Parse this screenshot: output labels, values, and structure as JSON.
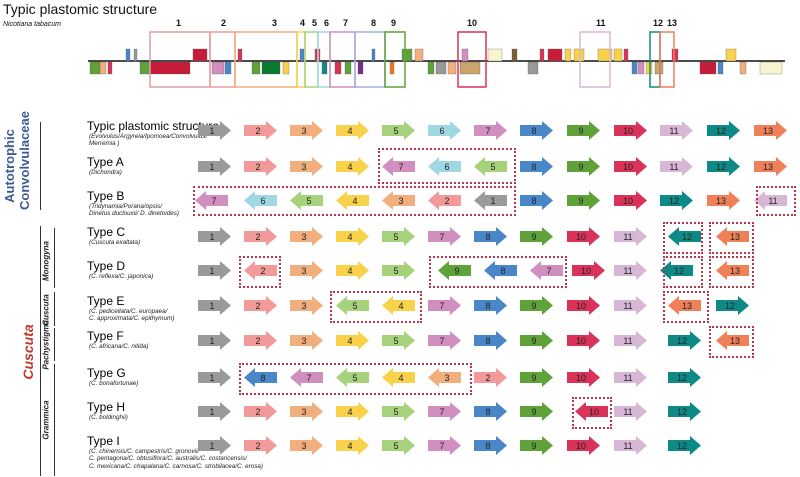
{
  "header": {
    "title": "Typic plastomic structure",
    "species": "Nicotiana tabacum"
  },
  "genome_numbers": [
    "1",
    "2",
    "3",
    "4",
    "5",
    "6",
    "7",
    "8",
    "9",
    "10",
    "11",
    "12",
    "13"
  ],
  "groups": {
    "autotrophic": [
      "Autotrophic",
      "Convolvulaceae"
    ],
    "cuscuta": "Cuscuta",
    "subgenera": [
      "Monogyna",
      "Cuscuta",
      "Pachystigma",
      "Grammica"
    ]
  },
  "colors": {
    "1": "#9a9a9a",
    "2": "#f29a9a",
    "3": "#f2ae7c",
    "4": "#f8d24a",
    "5": "#a6d27c",
    "6": "#9fd8e2",
    "7": "#d18fbf",
    "8": "#4a87c9",
    "9": "#5fa23a",
    "10": "#d9335a",
    "11": "#d7b7d5",
    "12": "#0d8a86",
    "13": "#ef8058",
    "dash": "#b8344a",
    "autotrophic_text": "#3d5a92",
    "cuscuta_text": "#c0392b"
  },
  "rows": [
    {
      "title": "Typic plastomic structure",
      "sub": [
        "(Evolvulus/Argyreia/Ipomoea/Convolvulus/",
        "Merremia )"
      ],
      "arrows": [
        [
          "1",
          "r"
        ],
        [
          "2",
          "r"
        ],
        [
          "3",
          "r"
        ],
        [
          "4",
          "r"
        ],
        [
          "5",
          "r"
        ],
        [
          "6",
          "r"
        ],
        [
          "7",
          "r"
        ],
        [
          "8",
          "r"
        ],
        [
          "9",
          "r"
        ],
        [
          "10",
          "r"
        ],
        [
          "11",
          "r"
        ],
        [
          "12",
          "r"
        ],
        [
          "13",
          "r"
        ]
      ]
    },
    {
      "title": "Type A",
      "sub": [
        "(Dichondra)"
      ],
      "arrows": [
        [
          "1",
          "r"
        ],
        [
          "2",
          "r"
        ],
        [
          "3",
          "r"
        ],
        [
          "4",
          "r"
        ],
        [
          "7",
          "l"
        ],
        [
          "6",
          "l"
        ],
        [
          "5",
          "l"
        ],
        [
          "8",
          "r"
        ],
        [
          "9",
          "r"
        ],
        [
          "10",
          "r"
        ],
        [
          "11",
          "r"
        ],
        [
          "12",
          "r"
        ],
        [
          "13",
          "r"
        ]
      ]
    },
    {
      "title": "Type B",
      "sub": [
        "(Tridynamia/Porana/opsis/",
        "Dinetus duclouxii/ D. dinetoides)"
      ],
      "arrows": [
        [
          "7",
          "l"
        ],
        [
          "6",
          "l"
        ],
        [
          "5",
          "l"
        ],
        [
          "4",
          "l"
        ],
        [
          "3",
          "l"
        ],
        [
          "2",
          "l"
        ],
        [
          "1",
          "l"
        ],
        [
          "8",
          "r"
        ],
        [
          "9",
          "r"
        ],
        [
          "10",
          "r"
        ],
        [
          "12",
          "r"
        ],
        [
          "13",
          "r"
        ],
        [
          "11",
          "l"
        ]
      ]
    },
    {
      "title": "Type C",
      "sub": [
        "(Cuscuta exaltata)"
      ],
      "arrows": [
        [
          "1",
          "r"
        ],
        [
          "2",
          "r"
        ],
        [
          "3",
          "r"
        ],
        [
          "4",
          "r"
        ],
        [
          "5",
          "r"
        ],
        [
          "7",
          "r"
        ],
        [
          "8",
          "r"
        ],
        [
          "9",
          "r"
        ],
        [
          "10",
          "r"
        ],
        [
          "11",
          "r"
        ],
        [
          "12",
          "l"
        ],
        [
          "13",
          "l"
        ]
      ]
    },
    {
      "title": "Type D",
      "sub": [
        "(C. reflexa/C. japonica)"
      ],
      "arrows": [
        [
          "1",
          "r"
        ],
        [
          "2",
          "l"
        ],
        [
          "3",
          "r"
        ],
        [
          "4",
          "r"
        ],
        [
          "5",
          "r"
        ],
        [
          "9",
          "l"
        ],
        [
          "8",
          "l"
        ],
        [
          "7",
          "l"
        ],
        [
          "10",
          "r"
        ],
        [
          "11",
          "r"
        ],
        [
          "12",
          "l"
        ],
        [
          "13",
          "l"
        ]
      ]
    },
    {
      "title": "Type E",
      "sub": [
        "(C. pedicellata/C. europaea/",
        "C. approximata/C. epithymum)"
      ],
      "arrows": [
        [
          "1",
          "r"
        ],
        [
          "2",
          "r"
        ],
        [
          "3",
          "r"
        ],
        [
          "5",
          "l"
        ],
        [
          "4",
          "l"
        ],
        [
          "7",
          "r"
        ],
        [
          "8",
          "r"
        ],
        [
          "9",
          "r"
        ],
        [
          "10",
          "r"
        ],
        [
          "11",
          "r"
        ],
        [
          "13",
          "l"
        ],
        [
          "12",
          "r"
        ]
      ]
    },
    {
      "title": "Type F",
      "sub": [
        "(C. africana/C. nitida)"
      ],
      "arrows": [
        [
          "1",
          "r"
        ],
        [
          "2",
          "r"
        ],
        [
          "3",
          "r"
        ],
        [
          "4",
          "r"
        ],
        [
          "5",
          "r"
        ],
        [
          "7",
          "r"
        ],
        [
          "8",
          "r"
        ],
        [
          "9",
          "r"
        ],
        [
          "10",
          "r"
        ],
        [
          "11",
          "r"
        ],
        [
          "12",
          "r"
        ],
        [
          "13",
          "l"
        ]
      ]
    },
    {
      "title": "Type G",
      "sub": [
        "(C. bonafortunae)"
      ],
      "arrows": [
        [
          "1",
          "r"
        ],
        [
          "8",
          "l"
        ],
        [
          "7",
          "l"
        ],
        [
          "5",
          "l"
        ],
        [
          "4",
          "l"
        ],
        [
          "3",
          "l"
        ],
        [
          "2",
          "r"
        ],
        [
          "9",
          "r"
        ],
        [
          "10",
          "r"
        ],
        [
          "11",
          "r"
        ],
        [
          "12",
          "r"
        ]
      ]
    },
    {
      "title": "Type H",
      "sub": [
        "(C. boldinghii)"
      ],
      "arrows": [
        [
          "1",
          "r"
        ],
        [
          "2",
          "r"
        ],
        [
          "3",
          "r"
        ],
        [
          "4",
          "r"
        ],
        [
          "5",
          "r"
        ],
        [
          "7",
          "r"
        ],
        [
          "8",
          "r"
        ],
        [
          "9",
          "r"
        ],
        [
          "10",
          "l"
        ],
        [
          "11",
          "r"
        ],
        [
          "12",
          "r"
        ]
      ]
    },
    {
      "title": "Type I",
      "sub": [
        "(C. chinensis/C. campestris/C. gronovii/",
        "C. pentagona/C. obtusiflora/C. australis/C. costaricensis/",
        "C. mexicana/C. chapalana/C. carnosa/C. strobilacea/C. erosa)"
      ],
      "arrows": [
        [
          "1",
          "r"
        ],
        [
          "2",
          "r"
        ],
        [
          "3",
          "r"
        ],
        [
          "4",
          "r"
        ],
        [
          "5",
          "r"
        ],
        [
          "7",
          "r"
        ],
        [
          "8",
          "r"
        ],
        [
          "9",
          "r"
        ],
        [
          "10",
          "r"
        ],
        [
          "11",
          "r"
        ],
        [
          "12",
          "r"
        ]
      ]
    }
  ]
}
